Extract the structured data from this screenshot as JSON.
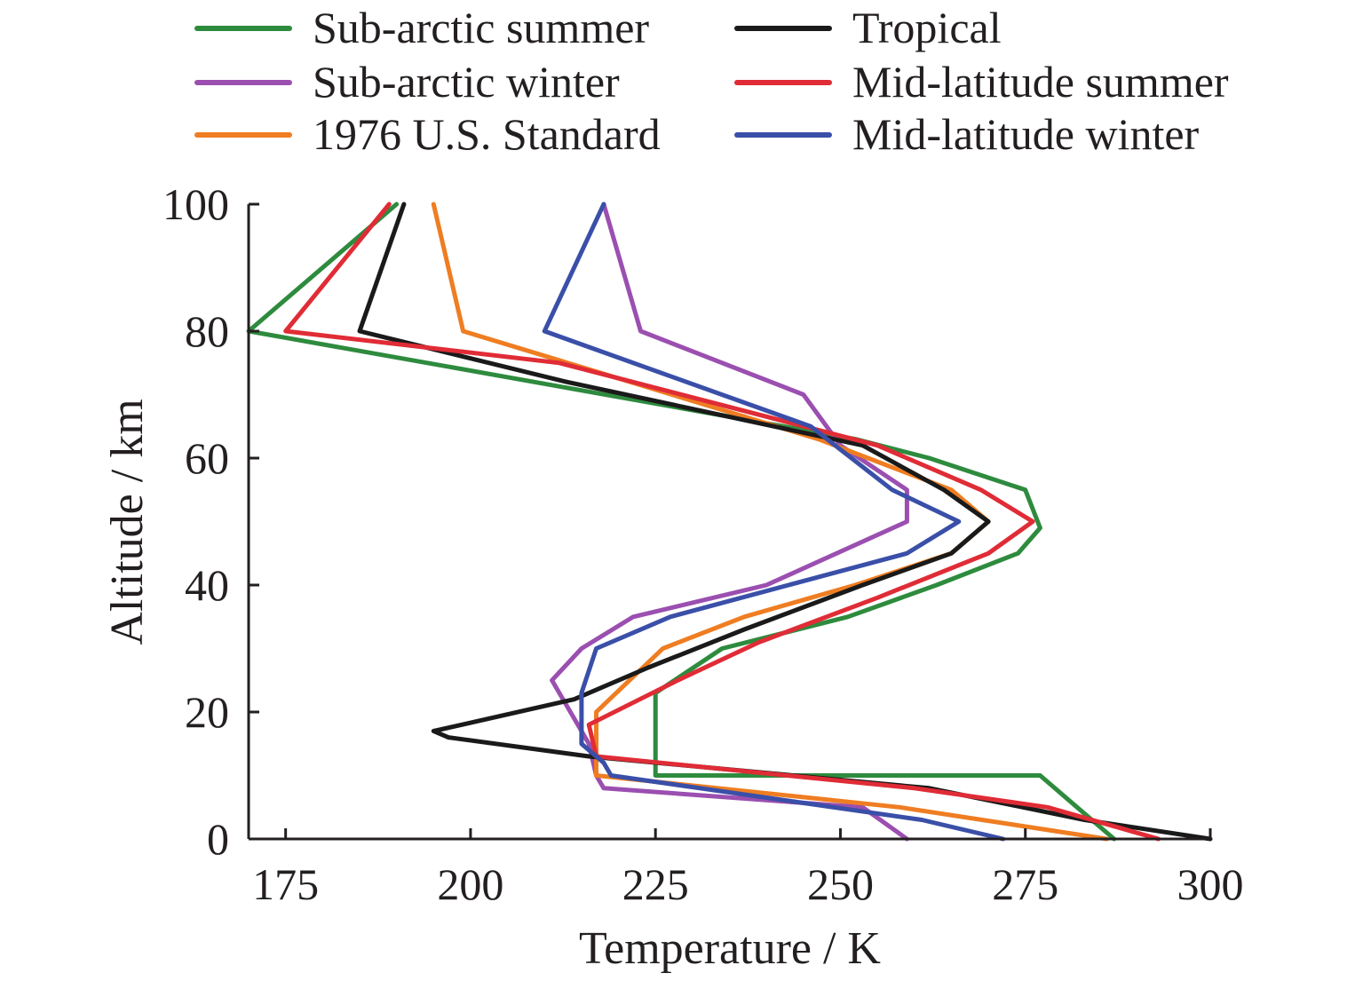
{
  "chart_data": {
    "type": "line",
    "title": "",
    "xlabel": "Temperature / K",
    "ylabel": "Altitude / km",
    "xlim": [
      170,
      300
    ],
    "ylim": [
      0,
      100
    ],
    "x_ticks": [
      175,
      200,
      225,
      250,
      275,
      300
    ],
    "y_ticks": [
      0,
      20,
      40,
      60,
      80,
      100
    ],
    "grid": false,
    "legend_position": "top",
    "series": [
      {
        "name": "Sub-arctic summer",
        "color": "#2e8b3e",
        "points": [
          [
            287,
            0
          ],
          [
            282,
            5
          ],
          [
            277,
            10
          ],
          [
            225,
            10
          ],
          [
            225,
            23
          ],
          [
            234,
            30
          ],
          [
            251,
            35
          ],
          [
            263,
            40
          ],
          [
            274,
            45
          ],
          [
            277,
            49
          ],
          [
            275,
            55
          ],
          [
            262,
            60
          ],
          [
            252,
            63
          ],
          [
            170,
            80
          ],
          [
            190,
            100
          ]
        ]
      },
      {
        "name": "Sub-arctic winter",
        "color": "#9b4fb0",
        "points": [
          [
            259,
            0
          ],
          [
            253,
            5
          ],
          [
            218,
            8
          ],
          [
            217,
            10
          ],
          [
            216,
            15
          ],
          [
            211,
            25
          ],
          [
            215,
            30
          ],
          [
            222,
            35
          ],
          [
            240,
            40
          ],
          [
            259,
            50
          ],
          [
            259,
            55
          ],
          [
            250,
            62
          ],
          [
            245,
            70
          ],
          [
            223,
            80
          ],
          [
            218,
            100
          ]
        ]
      },
      {
        "name": "1976 U.S. Standard",
        "color": "#ef7d22",
        "points": [
          [
            286,
            0
          ],
          [
            258,
            5
          ],
          [
            217,
            10
          ],
          [
            217,
            20
          ],
          [
            226,
            30
          ],
          [
            237,
            35
          ],
          [
            252,
            40
          ],
          [
            265,
            45
          ],
          [
            270,
            50
          ],
          [
            265,
            55
          ],
          [
            247,
            63
          ],
          [
            199,
            80
          ],
          [
            195,
            100
          ]
        ]
      },
      {
        "name": "Tropical",
        "color": "#1a1a1a",
        "points": [
          [
            300,
            0
          ],
          [
            283,
            3
          ],
          [
            262,
            8
          ],
          [
            216,
            13
          ],
          [
            197,
            16
          ],
          [
            195,
            17
          ],
          [
            214,
            22
          ],
          [
            224,
            27
          ],
          [
            237,
            33
          ],
          [
            253,
            40
          ],
          [
            265,
            45
          ],
          [
            270,
            50
          ],
          [
            264,
            55
          ],
          [
            253,
            62
          ],
          [
            213,
            72
          ],
          [
            185,
            80
          ],
          [
            191,
            100
          ]
        ]
      },
      {
        "name": "Mid-latitude summer",
        "color": "#e02c36",
        "points": [
          [
            293,
            0
          ],
          [
            278,
            5
          ],
          [
            260,
            8
          ],
          [
            217,
            13
          ],
          [
            216,
            18
          ],
          [
            228,
            25
          ],
          [
            239,
            31
          ],
          [
            255,
            38
          ],
          [
            270,
            45
          ],
          [
            276,
            50
          ],
          [
            269,
            55
          ],
          [
            255,
            62
          ],
          [
            212,
            75
          ],
          [
            175,
            80
          ],
          [
            189,
            100
          ]
        ]
      },
      {
        "name": "Mid-latitude winter",
        "color": "#3a4fa8",
        "points": [
          [
            272,
            0
          ],
          [
            261,
            3
          ],
          [
            219,
            10
          ],
          [
            218,
            12
          ],
          [
            215,
            15
          ],
          [
            215,
            23
          ],
          [
            217,
            30
          ],
          [
            227,
            35
          ],
          [
            243,
            40
          ],
          [
            259,
            45
          ],
          [
            266,
            50
          ],
          [
            257,
            55
          ],
          [
            246,
            65
          ],
          [
            210,
            80
          ],
          [
            218,
            100
          ]
        ]
      }
    ]
  }
}
